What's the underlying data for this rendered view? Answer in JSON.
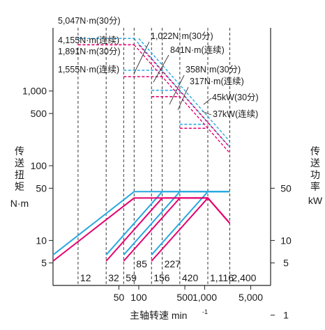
{
  "chart_data": {
    "type": "line",
    "xscale": "log",
    "xlabel": "主轴转速 min",
    "xlabel_sup": "-1",
    "ylabel_left": [
      "传",
      "送",
      "扭",
      "矩",
      "N·m"
    ],
    "ylabel_right": [
      "传",
      "送",
      "功",
      "率",
      "kW"
    ],
    "xlim": [
      5,
      10000
    ],
    "ylim_left": [
      2.5,
      7000
    ],
    "ylim_right": [
      2.5,
      7000
    ],
    "xticks": [
      {
        "value": 50,
        "label": "50"
      },
      {
        "value": 100,
        "label": "100"
      },
      {
        "value": 500,
        "label": "500"
      },
      {
        "value": 1000,
        "label": "1,000"
      },
      {
        "value": 5000,
        "label": "5,000"
      }
    ],
    "yticks_left": [
      {
        "value": 5,
        "label": "5"
      },
      {
        "value": 10,
        "label": "10"
      },
      {
        "value": 50,
        "label": "50"
      },
      {
        "value": 100,
        "label": "100"
      },
      {
        "value": 500,
        "label": "500"
      },
      {
        "value": 1000,
        "label": "1,000"
      }
    ],
    "yticks_right": [
      {
        "value": 1,
        "label": "1"
      },
      {
        "value": 5,
        "label": "5"
      },
      {
        "value": 10,
        "label": "10"
      },
      {
        "value": 50,
        "label": "50"
      }
    ],
    "gear_speeds": [
      {
        "value": 12,
        "label": "12",
        "row": "low"
      },
      {
        "value": 32,
        "label": "32",
        "row": "low"
      },
      {
        "value": 59,
        "label": "59",
        "row": "low"
      },
      {
        "value": 85,
        "label": "85",
        "row": "high"
      },
      {
        "value": 156,
        "label": "156",
        "row": "low"
      },
      {
        "value": 227,
        "label": "227",
        "row": "high"
      },
      {
        "value": 420,
        "label": "420",
        "row": "low"
      },
      {
        "value": 1116,
        "label": "1,116",
        "row": "low"
      },
      {
        "value": 2400,
        "label": "2,400",
        "row": "low"
      }
    ],
    "torque_levels": [
      {
        "value": 5047,
        "label": "5,047N·m(30分)",
        "from": 12,
        "to": 85,
        "kind": "30min"
      },
      {
        "value": 4155,
        "label": "4,155N·m(连续)",
        "from": 12,
        "to": 85,
        "kind": "cont"
      },
      {
        "value": 1891,
        "label": "1,891N·m(30分)",
        "from": 59,
        "to": 227,
        "kind": "30min"
      },
      {
        "value": 1555,
        "label": "1,555N·m(连续)",
        "from": 59,
        "to": 227,
        "kind": "cont"
      },
      {
        "value": 1022,
        "label": "1,022N·m(30分)",
        "from": 156,
        "to": 420,
        "kind": "30min"
      },
      {
        "value": 841,
        "label": "841N·m(连续)",
        "from": 156,
        "to": 420,
        "kind": "cont"
      },
      {
        "value": 358,
        "label": "358N·m(30分)",
        "from": 420,
        "to": 1116,
        "kind": "30min"
      },
      {
        "value": 317,
        "label": "317N·m(连续)",
        "from": 420,
        "to": 1116,
        "kind": "cont"
      }
    ],
    "power_levels": [
      {
        "value": 45,
        "label": "45kW(30分)",
        "kind": "30min"
      },
      {
        "value": 37,
        "label": "37kW(连续)",
        "kind": "cont"
      }
    ],
    "series": [
      {
        "kind": "30min",
        "color": "#29a9e0",
        "x": [
          5,
          85,
          2400
        ],
        "y": [
          6.4,
          45,
          45
        ]
      },
      {
        "kind": "30min",
        "color": "#29a9e0",
        "x": [
          32,
          227,
          2400
        ],
        "y": [
          6.4,
          45,
          45
        ]
      },
      {
        "kind": "30min",
        "color": "#29a9e0",
        "x": [
          59,
          420,
          2400
        ],
        "y": [
          6.4,
          45,
          45
        ]
      },
      {
        "kind": "30min",
        "color": "#29a9e0",
        "x": [
          156,
          1116,
          2400
        ],
        "y": [
          6.4,
          45,
          45
        ]
      },
      {
        "kind": "cont",
        "color": "#e5006e",
        "x": [
          5,
          85,
          1116,
          2400
        ],
        "y": [
          5.3,
          37,
          37,
          17
        ]
      },
      {
        "kind": "cont",
        "color": "#e5006e",
        "x": [
          32,
          227,
          1116,
          2400
        ],
        "y": [
          5.3,
          37,
          37,
          17
        ]
      },
      {
        "kind": "cont",
        "color": "#e5006e",
        "x": [
          59,
          420,
          1116,
          2400
        ],
        "y": [
          5.3,
          37,
          37,
          17
        ]
      },
      {
        "kind": "cont",
        "color": "#e5006e",
        "x": [
          156,
          1116,
          2400
        ],
        "y": [
          5.3,
          37,
          17
        ]
      }
    ],
    "colors": {
      "30min": "#29a9e0",
      "cont": "#e5006e"
    }
  }
}
